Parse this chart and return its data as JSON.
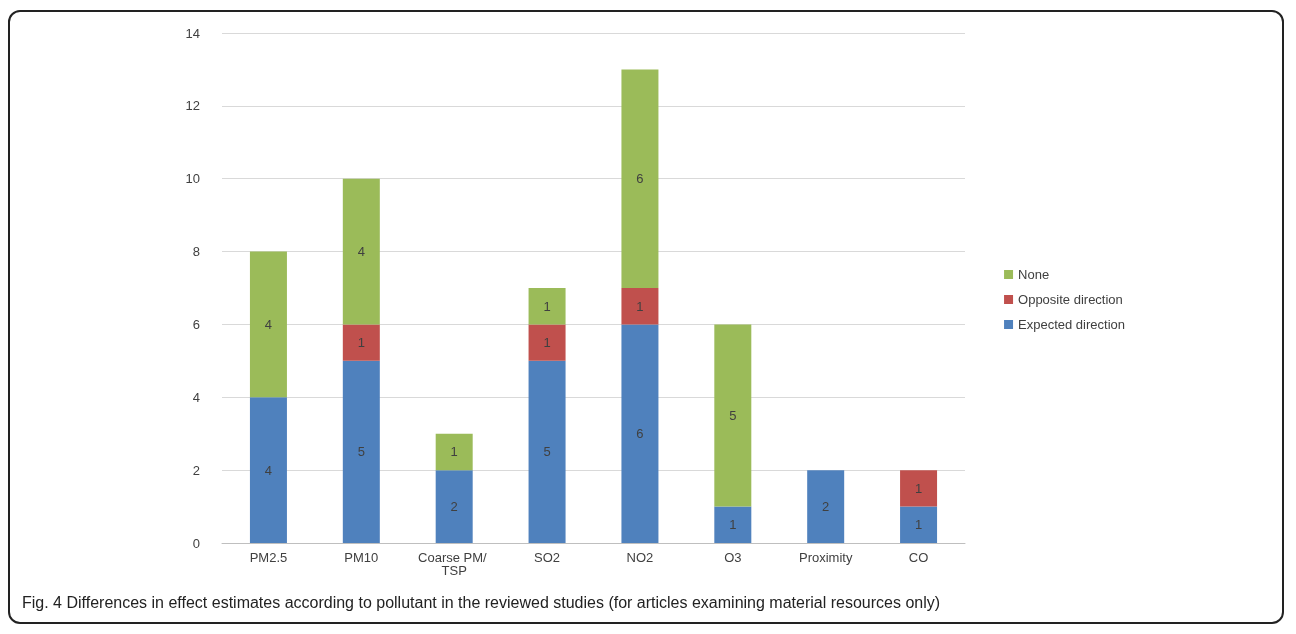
{
  "chart_data": {
    "type": "bar",
    "stacked": true,
    "categories": [
      "PM2.5",
      "PM10",
      "Coarse PM/ TSP",
      "SO2",
      "NO2",
      "O3",
      "Proximity",
      "CO"
    ],
    "series": [
      {
        "name": "Expected direction",
        "color": "#4f81bd",
        "values": [
          4,
          5,
          2,
          5,
          6,
          1,
          2,
          1
        ]
      },
      {
        "name": "Opposite direction",
        "color": "#c0504d",
        "values": [
          null,
          1,
          null,
          1,
          1,
          null,
          null,
          1
        ]
      },
      {
        "name": "None",
        "color": "#9bbb59",
        "values": [
          4,
          4,
          1,
          1,
          6,
          5,
          null,
          null
        ]
      }
    ],
    "ylim": [
      0,
      14
    ],
    "yticks": [
      0,
      2,
      4,
      6,
      8,
      10,
      12,
      14
    ],
    "grid": "y",
    "legend": "right",
    "data_labels": true,
    "annotations": [
      "Fig. 4 Differences in effect estimates according to pollutant in the reviewed studies (for articles examining material resources only)"
    ]
  }
}
